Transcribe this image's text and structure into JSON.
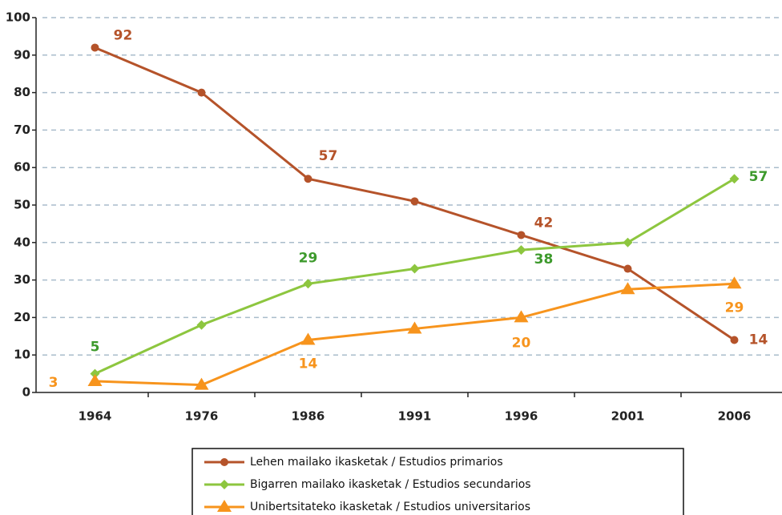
{
  "chart_data": {
    "type": "line",
    "categories": [
      "1964",
      "1976",
      "1986",
      "1991",
      "1996",
      "2001",
      "2006"
    ],
    "series": [
      {
        "name": "Lehen mailako ikasketak / Estudios primarios",
        "color": "#b5532a",
        "marker": "circle",
        "values": [
          92,
          80,
          57,
          51,
          42,
          33,
          14
        ],
        "value_labels": [
          "92",
          null,
          "57",
          null,
          "42",
          null,
          "14"
        ]
      },
      {
        "name": "Bigarren mailako ikasketak / Estudios secundarios",
        "color": "#8dc63f",
        "marker": "diamond",
        "values": [
          5,
          18,
          29,
          33,
          38,
          40,
          57
        ],
        "value_labels": [
          "5",
          null,
          "29",
          null,
          "38",
          null,
          "57"
        ]
      },
      {
        "name": "Unibertsitateko ikasketak / Estudios universitarios",
        "color": "#f7941d",
        "marker": "triangle",
        "values": [
          3,
          2,
          14,
          17,
          20,
          27.5,
          29
        ],
        "value_labels": [
          "3",
          null,
          "14",
          null,
          "20",
          null,
          "29"
        ]
      }
    ],
    "ylim": [
      0,
      100
    ],
    "yticks": [
      0,
      10,
      20,
      30,
      40,
      50,
      60,
      70,
      80,
      90,
      100
    ],
    "grid": true
  }
}
